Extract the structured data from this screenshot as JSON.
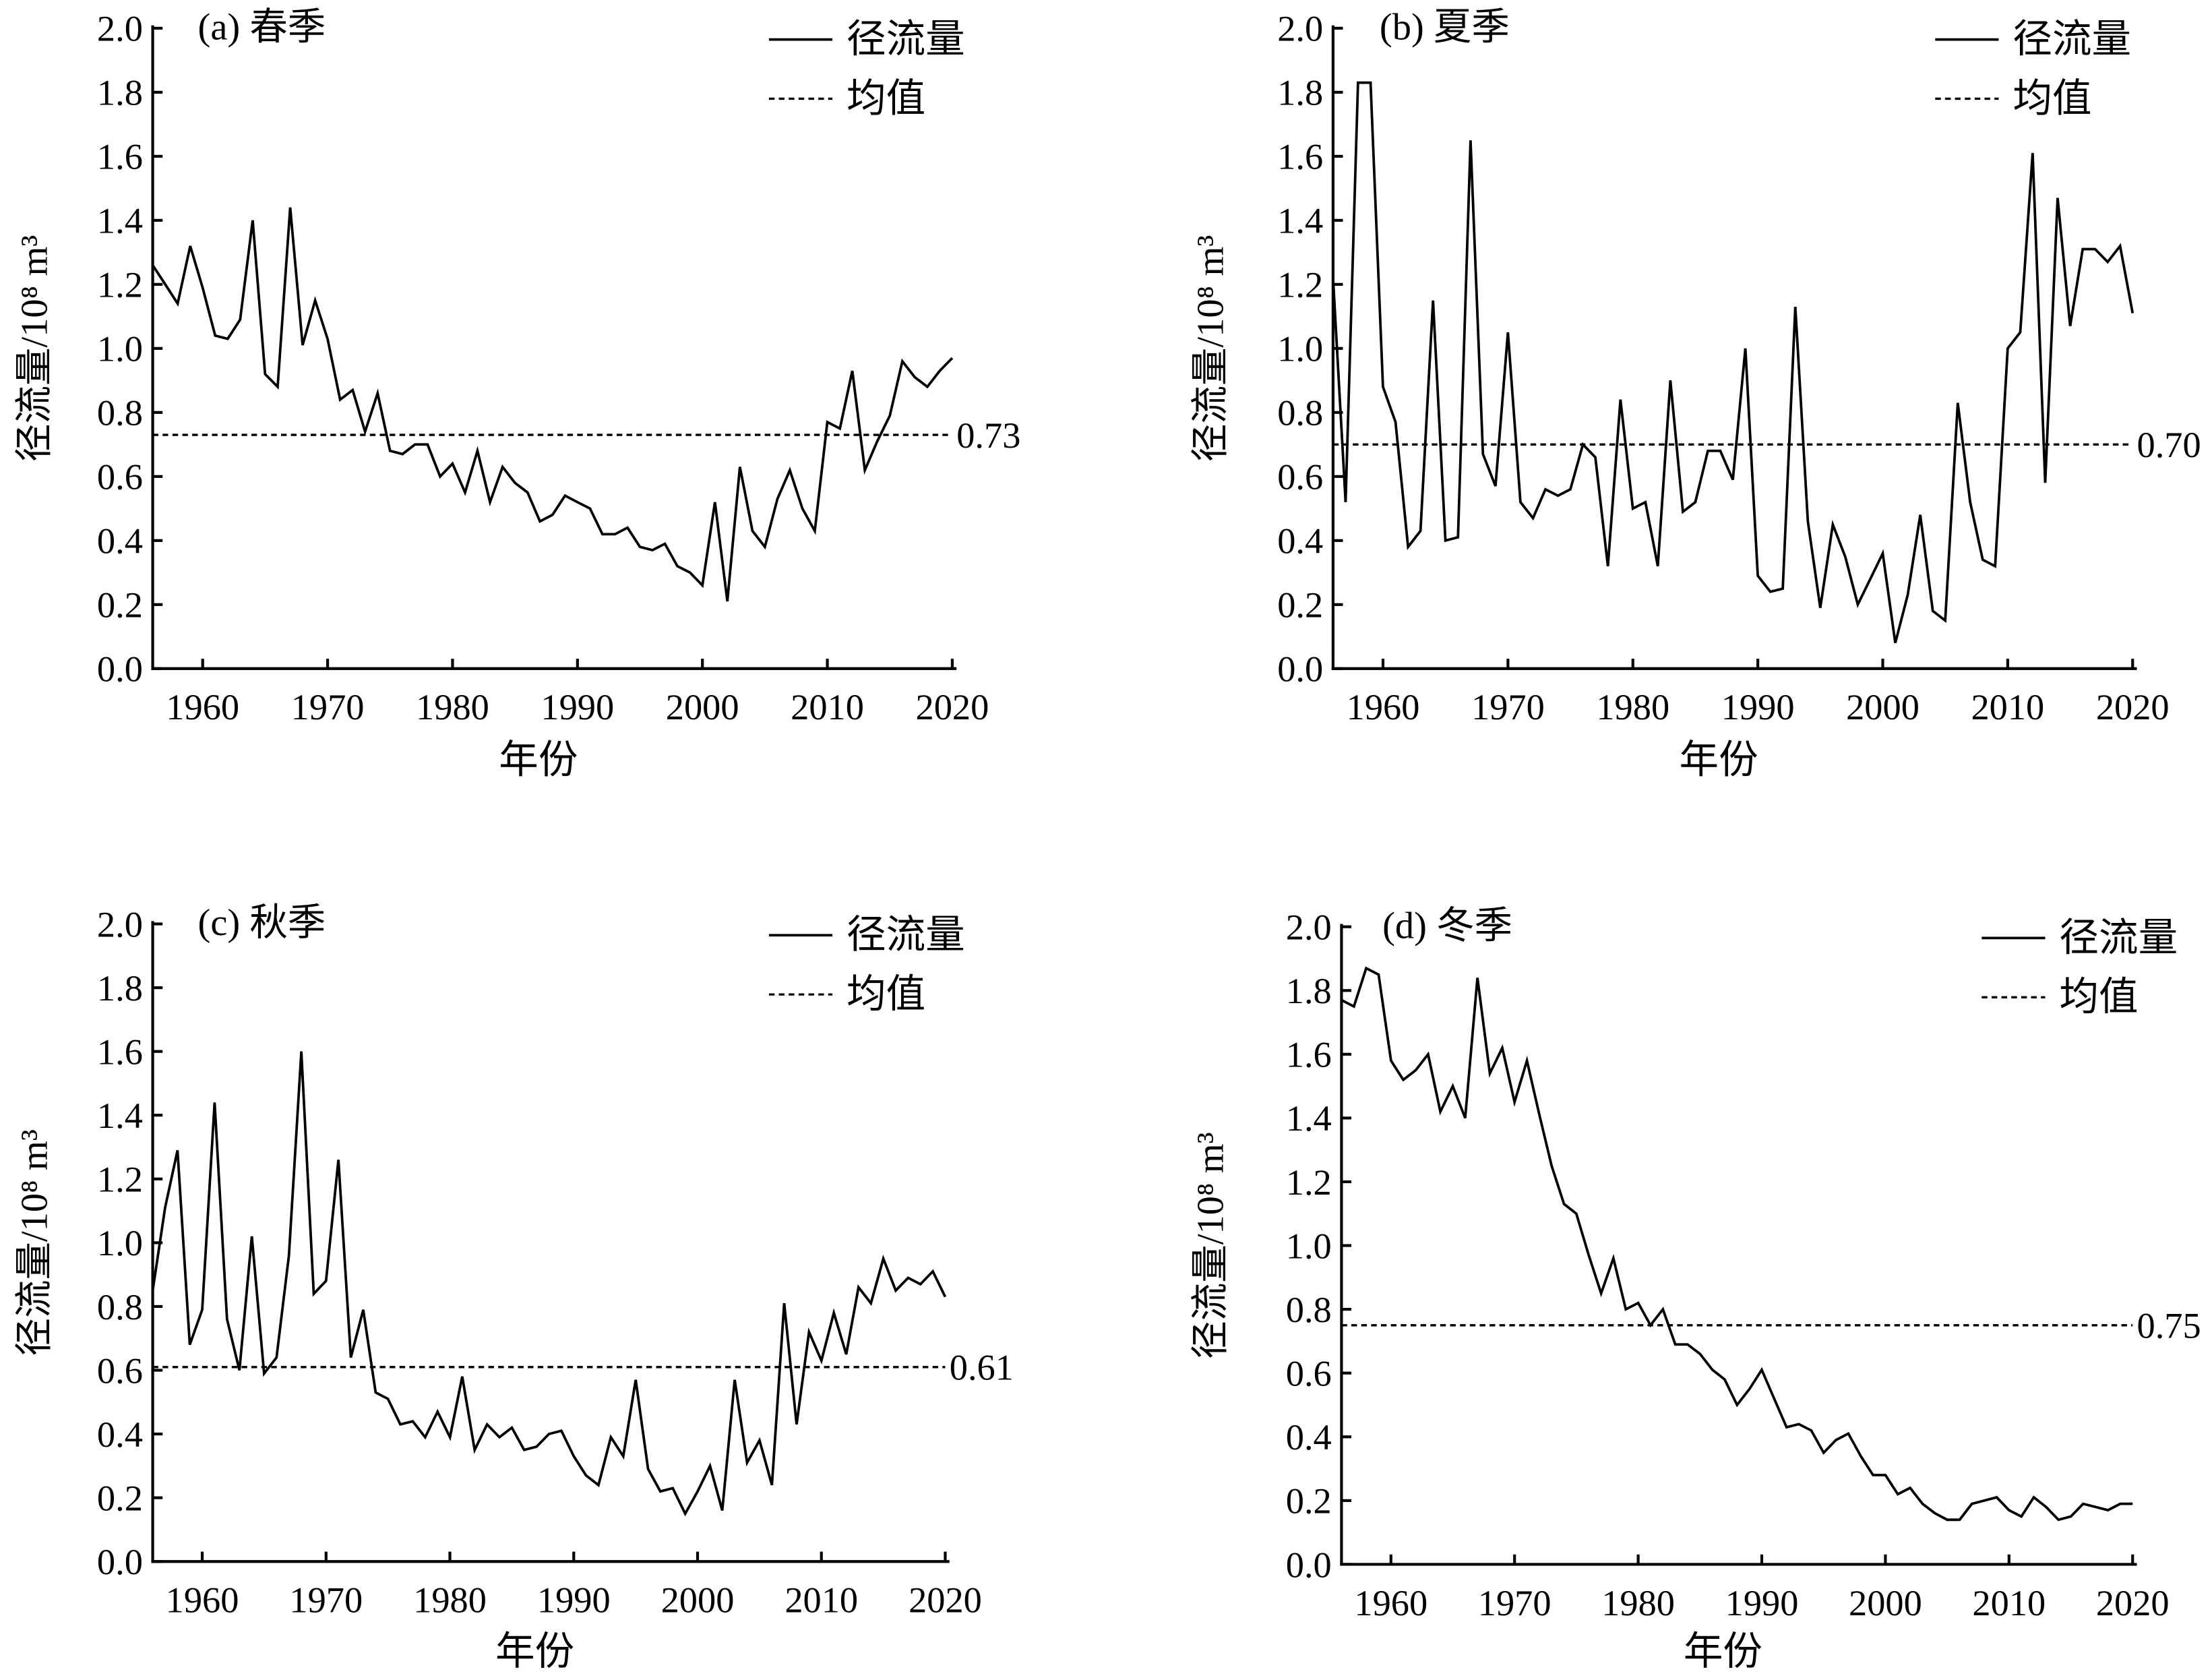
{
  "legend": {
    "series_label": "径流量",
    "mean_label": "均值"
  },
  "chart_data": [
    {
      "type": "line",
      "title": "(a) 春季",
      "xlabel": "年份",
      "ylabel": "径流量/10⁸ m³",
      "xlim": [
        1956,
        2020
      ],
      "ylim": [
        0,
        2.0
      ],
      "xticks": [
        "1960",
        "1970",
        "1980",
        "1990",
        "2000",
        "2010",
        "2020"
      ],
      "yticks": [
        "0.0",
        "0.2",
        "0.4",
        "0.6",
        "0.8",
        "1.0",
        "1.2",
        "1.4",
        "1.6",
        "1.8",
        "2.0"
      ],
      "grid": false,
      "legend_position": "top-right",
      "x_start": 1956,
      "mean": 0.73,
      "mean_text": "0.73",
      "values": [
        1.26,
        1.2,
        1.14,
        1.32,
        1.19,
        1.04,
        1.03,
        1.09,
        1.4,
        0.92,
        0.88,
        1.44,
        1.01,
        1.15,
        1.03,
        0.84,
        0.87,
        0.74,
        0.86,
        0.68,
        0.67,
        0.7,
        0.7,
        0.6,
        0.64,
        0.55,
        0.68,
        0.52,
        0.63,
        0.58,
        0.55,
        0.46,
        0.48,
        0.54,
        0.52,
        0.5,
        0.42,
        0.42,
        0.44,
        0.38,
        0.37,
        0.39,
        0.32,
        0.3,
        0.26,
        0.52,
        0.21,
        0.63,
        0.43,
        0.38,
        0.53,
        0.62,
        0.5,
        0.43,
        0.77,
        0.75,
        0.93,
        0.62,
        0.71,
        0.79,
        0.96,
        0.91,
        0.88,
        0.93,
        0.97
      ]
    },
    {
      "type": "line",
      "title": "(b) 夏季",
      "xlabel": "年份",
      "ylabel": "径流量/10⁸ m³",
      "xlim": [
        1956,
        2020
      ],
      "ylim": [
        0,
        2.0
      ],
      "xticks": [
        "1960",
        "1970",
        "1980",
        "1990",
        "2000",
        "2010",
        "2020"
      ],
      "yticks": [
        "0.0",
        "0.2",
        "0.4",
        "0.6",
        "0.8",
        "1.0",
        "1.2",
        "1.4",
        "1.6",
        "1.8",
        "2.0"
      ],
      "grid": false,
      "legend_position": "top-right",
      "x_start": 1956,
      "mean": 0.7,
      "mean_text": "0.70",
      "values": [
        1.22,
        0.52,
        1.83,
        1.83,
        0.88,
        0.77,
        0.38,
        0.43,
        1.15,
        0.4,
        0.41,
        1.65,
        0.67,
        0.57,
        1.05,
        0.52,
        0.47,
        0.56,
        0.54,
        0.56,
        0.7,
        0.66,
        0.32,
        0.84,
        0.5,
        0.52,
        0.32,
        0.9,
        0.49,
        0.52,
        0.68,
        0.68,
        0.59,
        1.0,
        0.29,
        0.24,
        0.25,
        1.13,
        0.46,
        0.19,
        0.45,
        0.35,
        0.2,
        0.28,
        0.36,
        0.08,
        0.23,
        0.48,
        0.18,
        0.15,
        0.83,
        0.52,
        0.34,
        0.32,
        1.0,
        1.05,
        1.61,
        0.58,
        1.47,
        1.07,
        1.31,
        1.31,
        1.27,
        1.32,
        1.11
      ]
    },
    {
      "type": "line",
      "title": "(c) 秋季",
      "xlabel": "年份",
      "ylabel": "径流量/10⁸ m³",
      "xlim": [
        1956,
        2020
      ],
      "ylim": [
        0,
        2.0
      ],
      "xticks": [
        "1960",
        "1970",
        "1980",
        "1990",
        "2000",
        "2010",
        "2020"
      ],
      "yticks": [
        "0.0",
        "0.2",
        "0.4",
        "0.6",
        "0.8",
        "1.0",
        "1.2",
        "1.4",
        "1.6",
        "1.8",
        "2.0"
      ],
      "grid": false,
      "legend_position": "top-right",
      "x_start": 1956,
      "mean": 0.61,
      "mean_text": "0.61",
      "values": [
        0.85,
        1.11,
        1.29,
        0.68,
        0.79,
        1.44,
        0.76,
        0.6,
        1.02,
        0.59,
        0.64,
        0.96,
        1.6,
        0.84,
        0.88,
        1.26,
        0.64,
        0.79,
        0.53,
        0.51,
        0.43,
        0.44,
        0.39,
        0.47,
        0.39,
        0.58,
        0.35,
        0.43,
        0.39,
        0.42,
        0.35,
        0.36,
        0.4,
        0.41,
        0.33,
        0.27,
        0.24,
        0.39,
        0.33,
        0.57,
        0.29,
        0.22,
        0.23,
        0.15,
        0.22,
        0.3,
        0.16,
        0.57,
        0.31,
        0.38,
        0.24,
        0.81,
        0.43,
        0.72,
        0.63,
        0.78,
        0.65,
        0.86,
        0.81,
        0.95,
        0.85,
        0.89,
        0.87,
        0.91,
        0.83
      ]
    },
    {
      "type": "line",
      "title": "(d) 冬季",
      "xlabel": "年份",
      "ylabel": "径流量/10⁸ m³",
      "xlim": [
        1956,
        2020
      ],
      "ylim": [
        0,
        2.0
      ],
      "xticks": [
        "1960",
        "1970",
        "1980",
        "1990",
        "2000",
        "2010",
        "2020"
      ],
      "yticks": [
        "0.0",
        "0.2",
        "0.4",
        "0.6",
        "0.8",
        "1.0",
        "1.2",
        "1.4",
        "1.6",
        "1.8",
        "2.0"
      ],
      "grid": false,
      "legend_position": "top-right",
      "x_start": 1956,
      "mean": 0.75,
      "mean_text": "0.75",
      "values": [
        1.77,
        1.75,
        1.87,
        1.85,
        1.58,
        1.52,
        1.55,
        1.6,
        1.42,
        1.5,
        1.4,
        1.84,
        1.54,
        1.62,
        1.45,
        1.58,
        1.41,
        1.25,
        1.13,
        1.1,
        0.97,
        0.85,
        0.96,
        0.8,
        0.82,
        0.75,
        0.8,
        0.69,
        0.69,
        0.66,
        0.61,
        0.58,
        0.5,
        0.55,
        0.61,
        0.52,
        0.43,
        0.44,
        0.42,
        0.35,
        0.39,
        0.41,
        0.34,
        0.28,
        0.28,
        0.22,
        0.24,
        0.19,
        0.16,
        0.14,
        0.14,
        0.19,
        0.2,
        0.21,
        0.17,
        0.15,
        0.21,
        0.18,
        0.14,
        0.15,
        0.19,
        0.18,
        0.17,
        0.19,
        0.19
      ]
    }
  ]
}
